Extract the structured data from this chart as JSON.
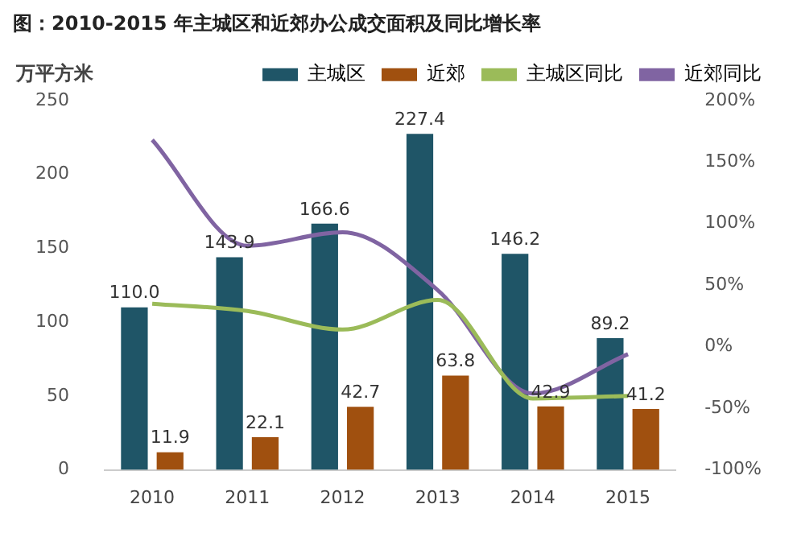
{
  "chart_data": {
    "type": "bar",
    "title": "图：2010-2015 年主城区和近郊办公成交面积及同比增长率",
    "ylabel": "万平方米",
    "categories": [
      "2010",
      "2011",
      "2012",
      "2013",
      "2014",
      "2015"
    ],
    "series": [
      {
        "name": "主城区",
        "color": "#1f5567",
        "values": [
          110.0,
          143.9,
          166.6,
          227.4,
          146.2,
          89.2
        ],
        "value_labels": [
          "110.0",
          "143.9",
          "166.6",
          "227.4",
          "146.2",
          "89.2"
        ]
      },
      {
        "name": "近郊",
        "color": "#a0500f",
        "values": [
          11.9,
          22.1,
          42.7,
          63.8,
          42.9,
          41.2
        ],
        "value_labels": [
          "11.9",
          "22.1",
          "42.7",
          "63.8",
          "42.9",
          "41.2"
        ]
      },
      {
        "name": "主城区同比",
        "type": "line",
        "axis": "y2",
        "color": "#9bbb59",
        "values": [
          35,
          29,
          14,
          38,
          -42,
          -40
        ]
      },
      {
        "name": "近郊同比",
        "type": "line",
        "axis": "y2",
        "color": "#8064a2",
        "values": [
          168,
          82,
          93,
          46,
          -38,
          -6
        ]
      }
    ],
    "ylim": [
      0,
      250
    ],
    "yticks": [
      0,
      50,
      100,
      150,
      200,
      250
    ],
    "y2lim": [
      -100,
      200
    ],
    "y2ticks": [
      {
        "value": -100,
        "label": "-100%"
      },
      {
        "value": -50,
        "label": "-50%"
      },
      {
        "value": 0,
        "label": "0%"
      },
      {
        "value": 50,
        "label": "50%"
      },
      {
        "value": 100,
        "label": "100%"
      },
      {
        "value": 150,
        "label": "150%"
      },
      {
        "value": 200,
        "label": "200%"
      }
    ],
    "grid": false,
    "legend": "top",
    "marker": "none"
  }
}
